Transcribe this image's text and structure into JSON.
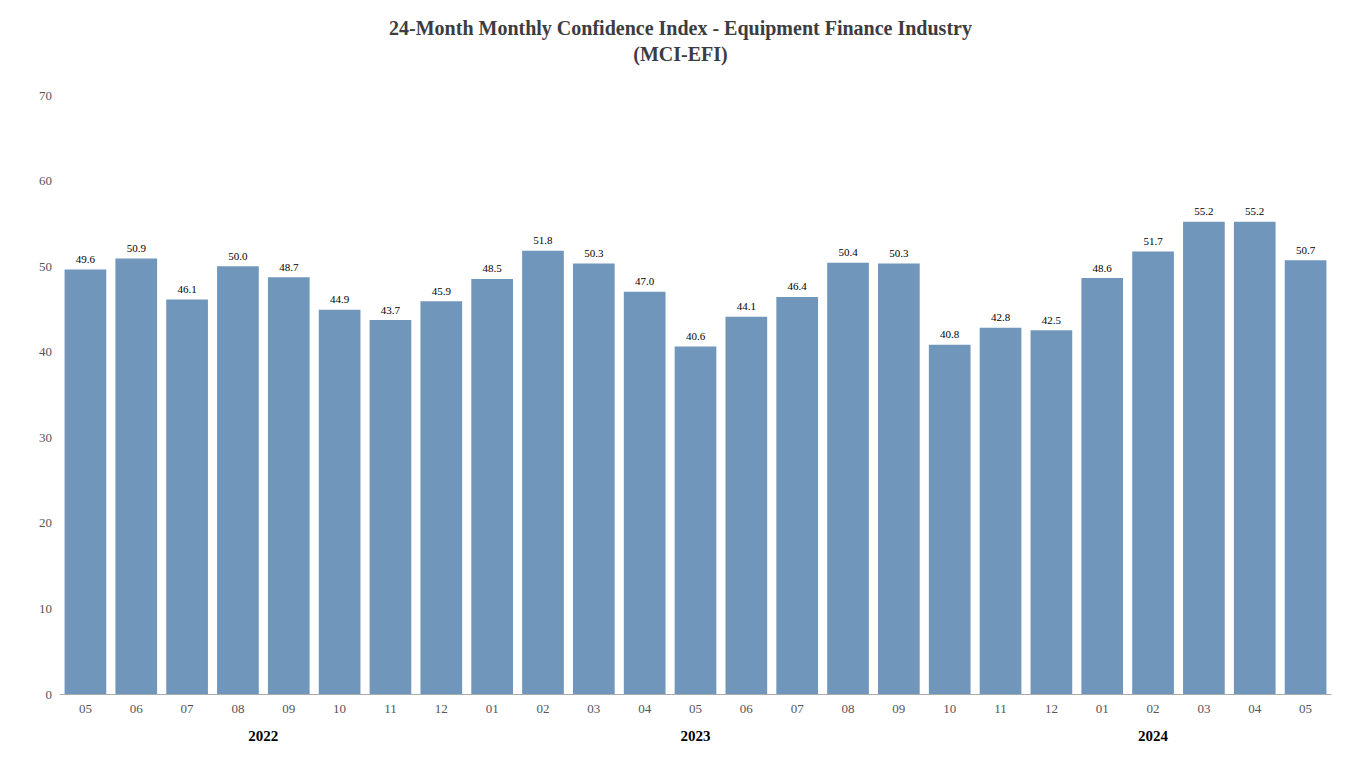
{
  "chart_data": {
    "type": "bar",
    "title": "24-Month Monthly Confidence Index - Equipment Finance Industry\n(MCI-EFI)",
    "categories": [
      "05",
      "06",
      "07",
      "08",
      "09",
      "10",
      "11",
      "12",
      "01",
      "02",
      "03",
      "04",
      "05",
      "06",
      "07",
      "08",
      "09",
      "10",
      "11",
      "12",
      "01",
      "02",
      "03",
      "04",
      "05"
    ],
    "values": [
      49.6,
      50.9,
      46.1,
      50.0,
      48.7,
      44.9,
      43.7,
      45.9,
      48.5,
      51.8,
      50.3,
      47.0,
      40.6,
      44.1,
      46.4,
      50.4,
      50.3,
      40.8,
      42.8,
      42.5,
      48.6,
      51.7,
      55.2,
      55.2,
      50.7
    ],
    "value_labels": [
      "49.6",
      "50.9",
      "46.1",
      "50.0",
      "48.7",
      "44.9",
      "43.7",
      "45.9",
      "48.5",
      "51.8",
      "50.3",
      "47.0",
      "40.6",
      "44.1",
      "46.4",
      "50.4",
      "50.3",
      "40.8",
      "42.8",
      "42.5",
      "48.6",
      "51.7",
      "55.2",
      "55.2",
      "50.7"
    ],
    "data_labels": true,
    "annotations": [
      {
        "text": "2022",
        "x": 3.5
      },
      {
        "text": "2023",
        "x": 12.0
      },
      {
        "text": "2024",
        "x": 21.0
      }
    ],
    "color": "#7096bb",
    "ylim": [
      0,
      70
    ],
    "yticks": [
      0,
      10,
      20,
      30,
      40,
      50,
      60,
      70
    ],
    "grid": false
  }
}
